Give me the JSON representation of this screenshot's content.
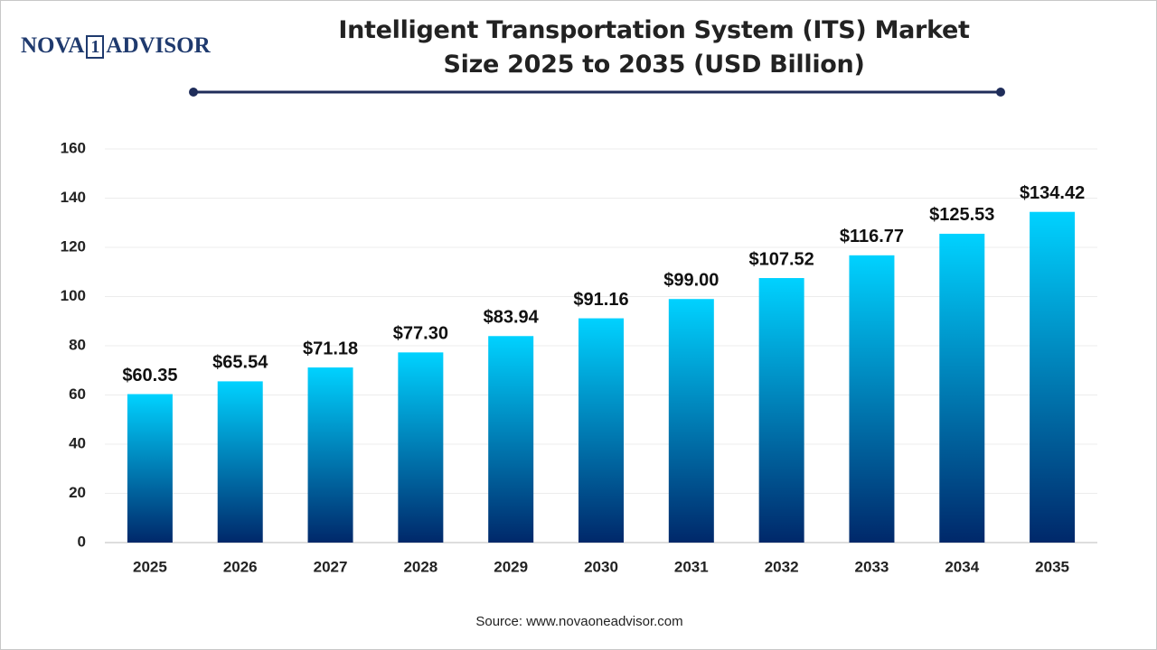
{
  "logo": {
    "left": "NOVA",
    "mark": "1",
    "right": "ADVISOR"
  },
  "chart_data": {
    "type": "bar",
    "title": "Intelligent Transportation System (ITS) Market Size  2025 to 2035 (USD Billion)",
    "categories": [
      "2025",
      "2026",
      "2027",
      "2028",
      "2029",
      "2030",
      "2031",
      "2032",
      "2033",
      "2034",
      "2035"
    ],
    "values": [
      60.35,
      65.54,
      71.18,
      77.3,
      83.94,
      91.16,
      99.0,
      107.52,
      116.77,
      125.53,
      134.42
    ],
    "value_labels": [
      "$60.35",
      "$65.54",
      "$71.18",
      "$77.30",
      "$83.94",
      "$91.16",
      "$99.00",
      "$107.52",
      "$116.77",
      "$125.53",
      "$134.42"
    ],
    "colors": [
      "#00d2ff",
      "#00286a"
    ],
    "ylim": [
      0,
      160
    ],
    "yticks": [
      0,
      20,
      40,
      60,
      80,
      100,
      120,
      140,
      160
    ],
    "grid": true,
    "source": "Source: www.novaoneadvisor.com"
  }
}
